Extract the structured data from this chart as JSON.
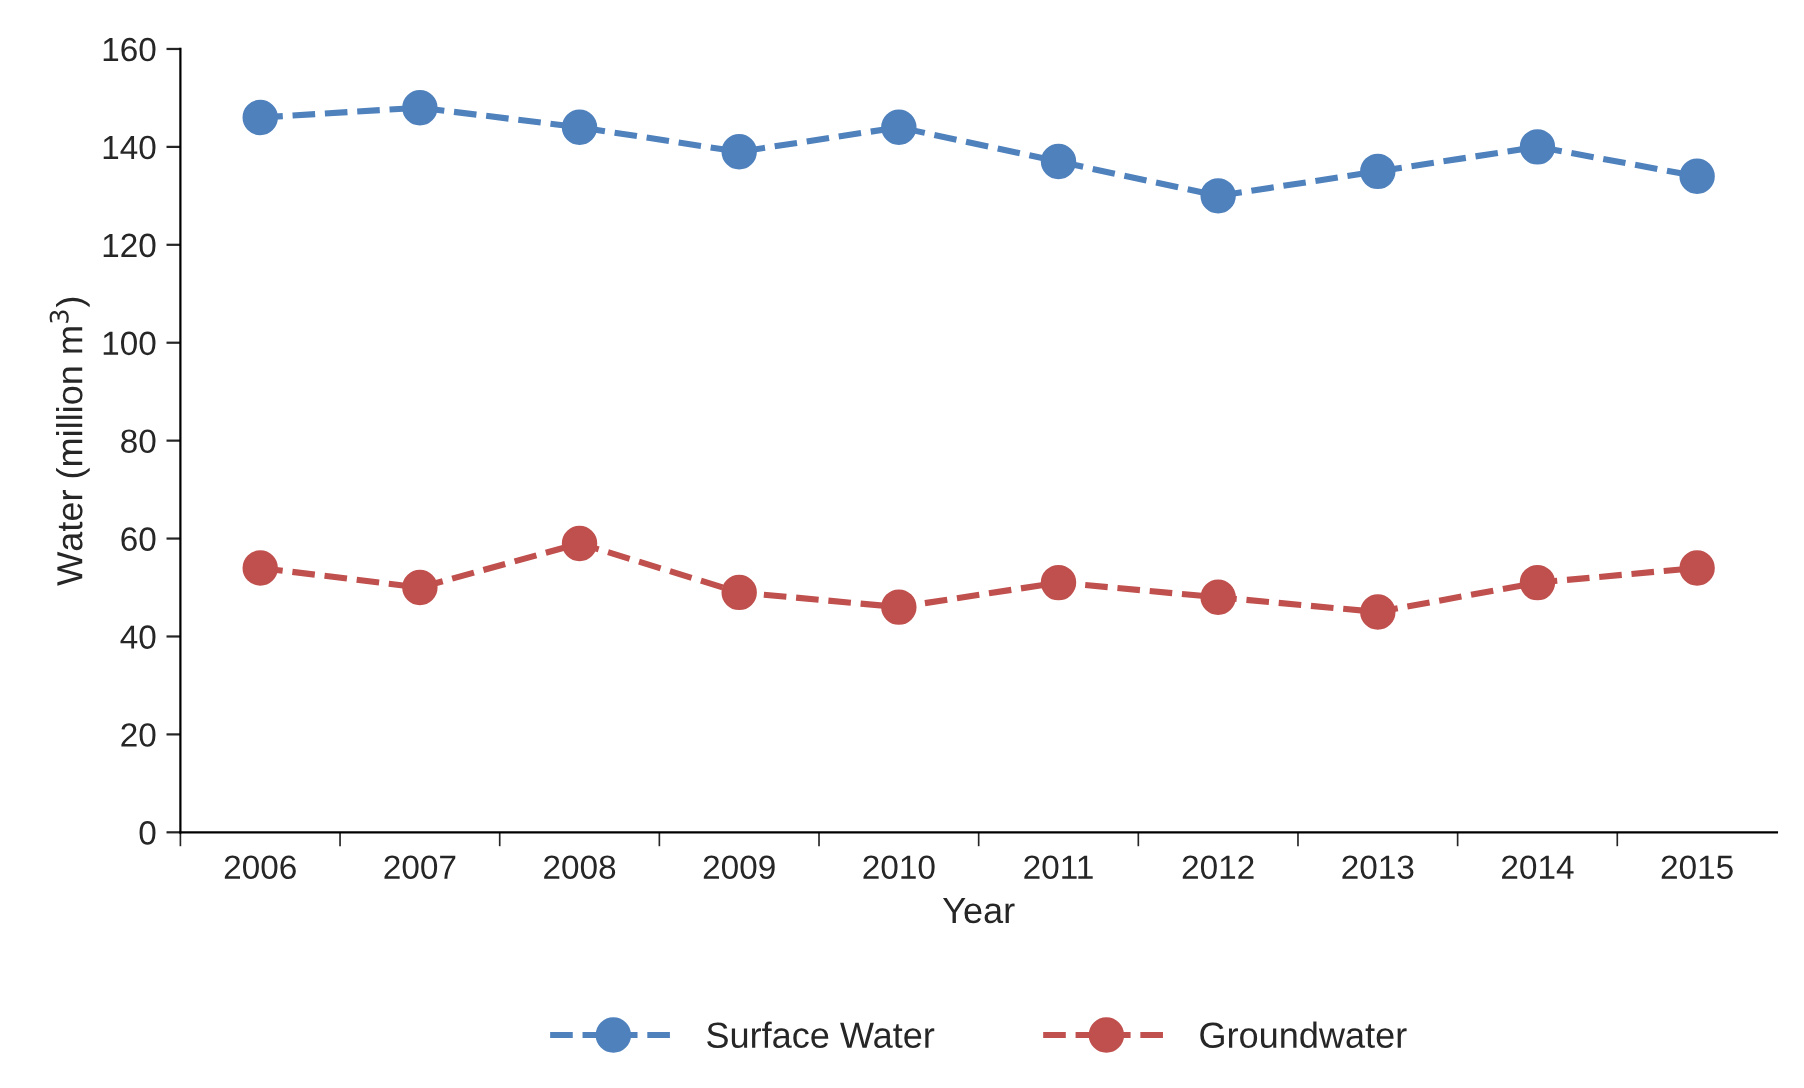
{
  "chart_data": {
    "type": "line",
    "xlabel": "Year",
    "ylabel": "Water (million m$^{3}$)",
    "categories": [
      "2006",
      "2007",
      "2008",
      "2009",
      "2010",
      "2011",
      "2012",
      "2013",
      "2014",
      "2015"
    ],
    "series": [
      {
        "name": "Surface Water",
        "color": "#4f81bd",
        "values": [
          146,
          148,
          144,
          139,
          144,
          137,
          130,
          135,
          140,
          134
        ]
      },
      {
        "name": "Groundwater",
        "color": "#c0504d",
        "values": [
          54,
          50,
          59,
          49,
          46,
          51,
          48,
          45,
          51,
          54
        ]
      }
    ],
    "ylim": [
      0,
      160
    ],
    "yticks": [
      0,
      20,
      40,
      60,
      80,
      100,
      120,
      140,
      160
    ],
    "grid": false,
    "legend": "bottom",
    "marker": "circle",
    "line_style": "dashed"
  }
}
